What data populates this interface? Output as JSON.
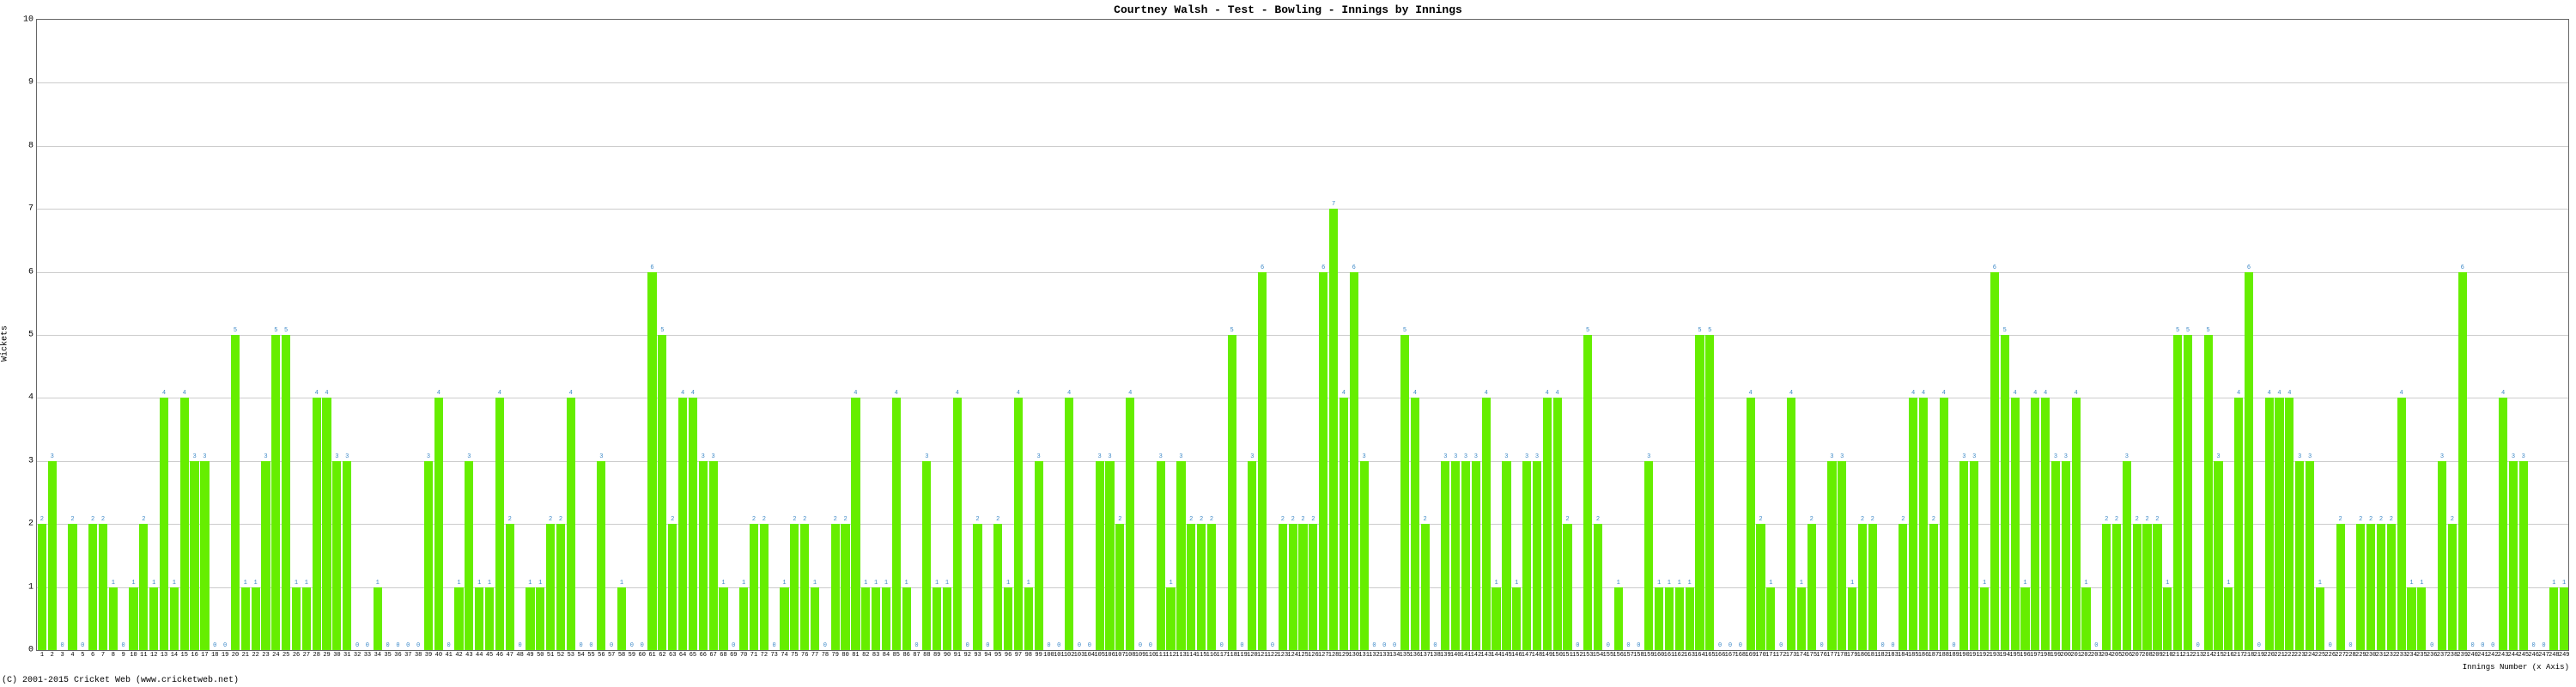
{
  "chart": {
    "type": "bar",
    "title": "Courtney Walsh - Test - Bowling - Innings by Innings",
    "ylabel": "Wickets",
    "xlabel": "Innings Number (x Axis)",
    "copyright": "(C) 2001-2015 Cricket Web (www.cricketweb.net)",
    "ylim_min": 0,
    "ylim_max": 10,
    "ytick_step": 1,
    "bar_color": "#66ee00",
    "label_color": "#3a87c7",
    "grid_color": "#cccccc",
    "border_color": "#666666",
    "background_color": "#ffffff",
    "title_fontsize": 13,
    "axis_label_fontsize": 10,
    "tick_fontsize": 10,
    "bar_label_fontsize": 7,
    "values": [
      2,
      3,
      0,
      2,
      0,
      2,
      2,
      1,
      0,
      1,
      2,
      1,
      4,
      1,
      4,
      3,
      3,
      0,
      0,
      5,
      1,
      1,
      3,
      5,
      5,
      1,
      1,
      4,
      4,
      3,
      3,
      0,
      0,
      1,
      0,
      0,
      0,
      0,
      3,
      4,
      0,
      1,
      3,
      1,
      1,
      4,
      2,
      0,
      1,
      1,
      2,
      2,
      4,
      0,
      0,
      3,
      0,
      1,
      0,
      0,
      6,
      5,
      2,
      4,
      4,
      3,
      3,
      1,
      0,
      1,
      2,
      2,
      0,
      1,
      2,
      2,
      1,
      0,
      2,
      2,
      4,
      1,
      1,
      1,
      4,
      1,
      0,
      3,
      1,
      1,
      4,
      0,
      2,
      0,
      2,
      1,
      4,
      1,
      3,
      0,
      0,
      4,
      0,
      0,
      3,
      3,
      2,
      4,
      0,
      0,
      3,
      1,
      3,
      2,
      2,
      2,
      0,
      5,
      0,
      3,
      6,
      0,
      2,
      2,
      2,
      2,
      6,
      7,
      4,
      6,
      3,
      0,
      0,
      0,
      5,
      4,
      2,
      0,
      3,
      3,
      3,
      3,
      4,
      1,
      3,
      1,
      3,
      3,
      4,
      4,
      2,
      0,
      5,
      2,
      0,
      1,
      0,
      0,
      3,
      1,
      1,
      1,
      1,
      5,
      5,
      0,
      0,
      0,
      4,
      2,
      1,
      0,
      4,
      1,
      2,
      0,
      3,
      3,
      1,
      2,
      2,
      0,
      0,
      2,
      4,
      4,
      2,
      4,
      0,
      3,
      3,
      1,
      6,
      5,
      4,
      1,
      4,
      4,
      3,
      3,
      4,
      1,
      0,
      2,
      2,
      3,
      2,
      2,
      2,
      1,
      5,
      5,
      0,
      5,
      3,
      1,
      4,
      6,
      0,
      4,
      4,
      4,
      3,
      3,
      1,
      0,
      2,
      0,
      2,
      2,
      2,
      2,
      4,
      1,
      1,
      0,
      3,
      2,
      6,
      0,
      0,
      0,
      4,
      3,
      3,
      0,
      0,
      1,
      1
    ]
  }
}
